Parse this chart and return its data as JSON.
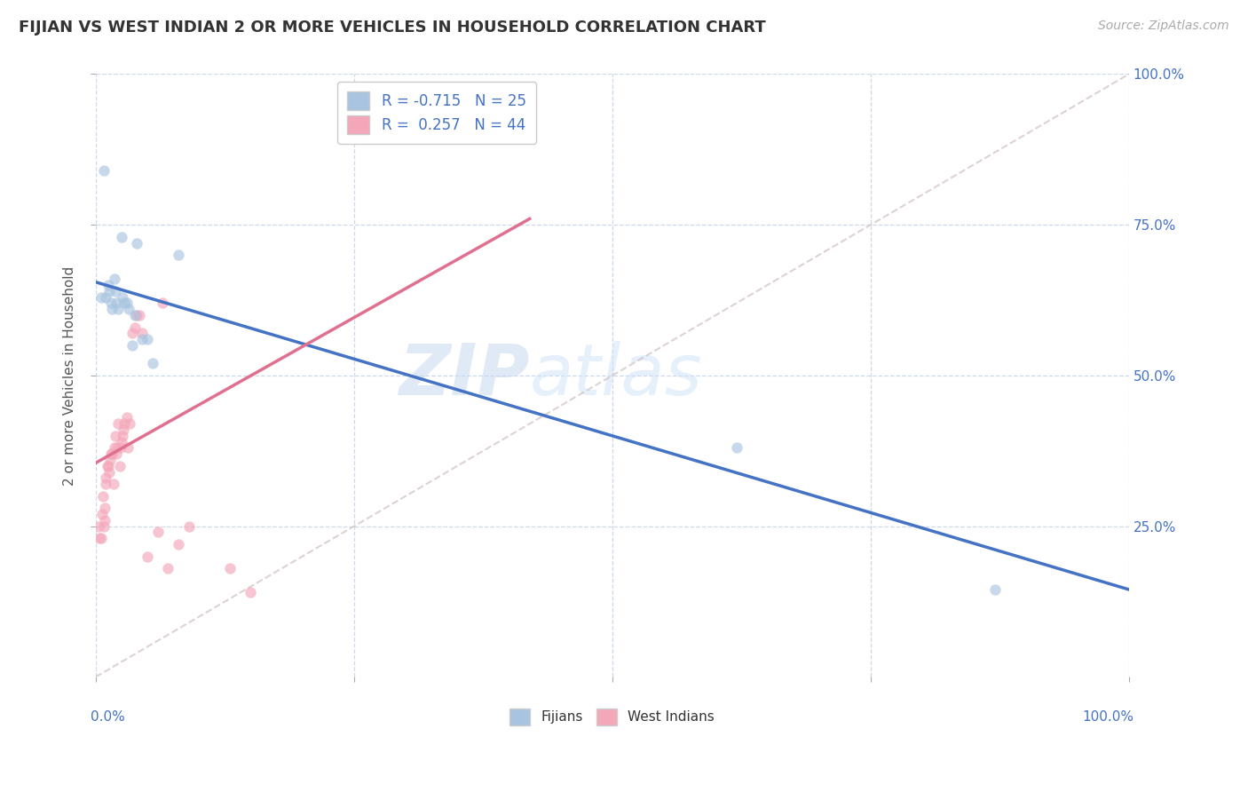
{
  "title": "FIJIAN VS WEST INDIAN 2 OR MORE VEHICLES IN HOUSEHOLD CORRELATION CHART",
  "source": "Source: ZipAtlas.com",
  "ylabel": "2 or more Vehicles in Household",
  "legend_fijian_R": "-0.715",
  "legend_fijian_N": "25",
  "legend_westindian_R": "0.257",
  "legend_westindian_N": "44",
  "fijian_color": "#a8c4e0",
  "westindian_color": "#f4a7b9",
  "fijian_line_color": "#4472c4",
  "westindian_line_color": "#e07090",
  "diagonal_color": "#d0c0c0",
  "watermark_zip": "ZIP",
  "watermark_atlas": "atlas",
  "background_color": "#ffffff",
  "xlim": [
    0.0,
    1.0
  ],
  "ylim": [
    0.0,
    1.0
  ],
  "fijian_line_x0": 0.0,
  "fijian_line_y0": 0.655,
  "fijian_line_x1": 1.0,
  "fijian_line_y1": 0.145,
  "westindian_line_x0": 0.0,
  "westindian_line_y0": 0.355,
  "westindian_line_x1": 0.42,
  "westindian_line_y1": 0.76,
  "fijian_scatter_x": [
    0.005,
    0.008,
    0.01,
    0.012,
    0.013,
    0.015,
    0.016,
    0.018,
    0.019,
    0.02,
    0.022,
    0.025,
    0.026,
    0.028,
    0.03,
    0.032,
    0.035,
    0.038,
    0.04,
    0.045,
    0.05,
    0.055,
    0.08,
    0.62,
    0.87
  ],
  "fijian_scatter_y": [
    0.63,
    0.84,
    0.63,
    0.65,
    0.64,
    0.62,
    0.61,
    0.66,
    0.64,
    0.62,
    0.61,
    0.73,
    0.63,
    0.62,
    0.62,
    0.61,
    0.55,
    0.6,
    0.72,
    0.56,
    0.56,
    0.52,
    0.7,
    0.38,
    0.145
  ],
  "westindian_scatter_x": [
    0.003,
    0.004,
    0.005,
    0.006,
    0.007,
    0.008,
    0.009,
    0.009,
    0.01,
    0.01,
    0.011,
    0.012,
    0.013,
    0.014,
    0.015,
    0.016,
    0.017,
    0.018,
    0.019,
    0.02,
    0.021,
    0.022,
    0.023,
    0.024,
    0.025,
    0.026,
    0.027,
    0.028,
    0.03,
    0.031,
    0.033,
    0.035,
    0.038,
    0.04,
    0.042,
    0.045,
    0.05,
    0.06,
    0.065,
    0.07,
    0.08,
    0.09,
    0.13,
    0.15
  ],
  "westindian_scatter_y": [
    0.25,
    0.23,
    0.23,
    0.27,
    0.3,
    0.25,
    0.26,
    0.28,
    0.32,
    0.33,
    0.35,
    0.35,
    0.34,
    0.36,
    0.37,
    0.37,
    0.32,
    0.38,
    0.4,
    0.37,
    0.38,
    0.42,
    0.35,
    0.38,
    0.39,
    0.4,
    0.41,
    0.42,
    0.43,
    0.38,
    0.42,
    0.57,
    0.58,
    0.6,
    0.6,
    0.57,
    0.2,
    0.24,
    0.62,
    0.18,
    0.22,
    0.25,
    0.18,
    0.14
  ],
  "title_fontsize": 13,
  "axis_label_fontsize": 11,
  "tick_fontsize": 11,
  "source_fontsize": 10,
  "scatter_size": 80,
  "scatter_alpha": 0.65,
  "line_width": 2.5
}
